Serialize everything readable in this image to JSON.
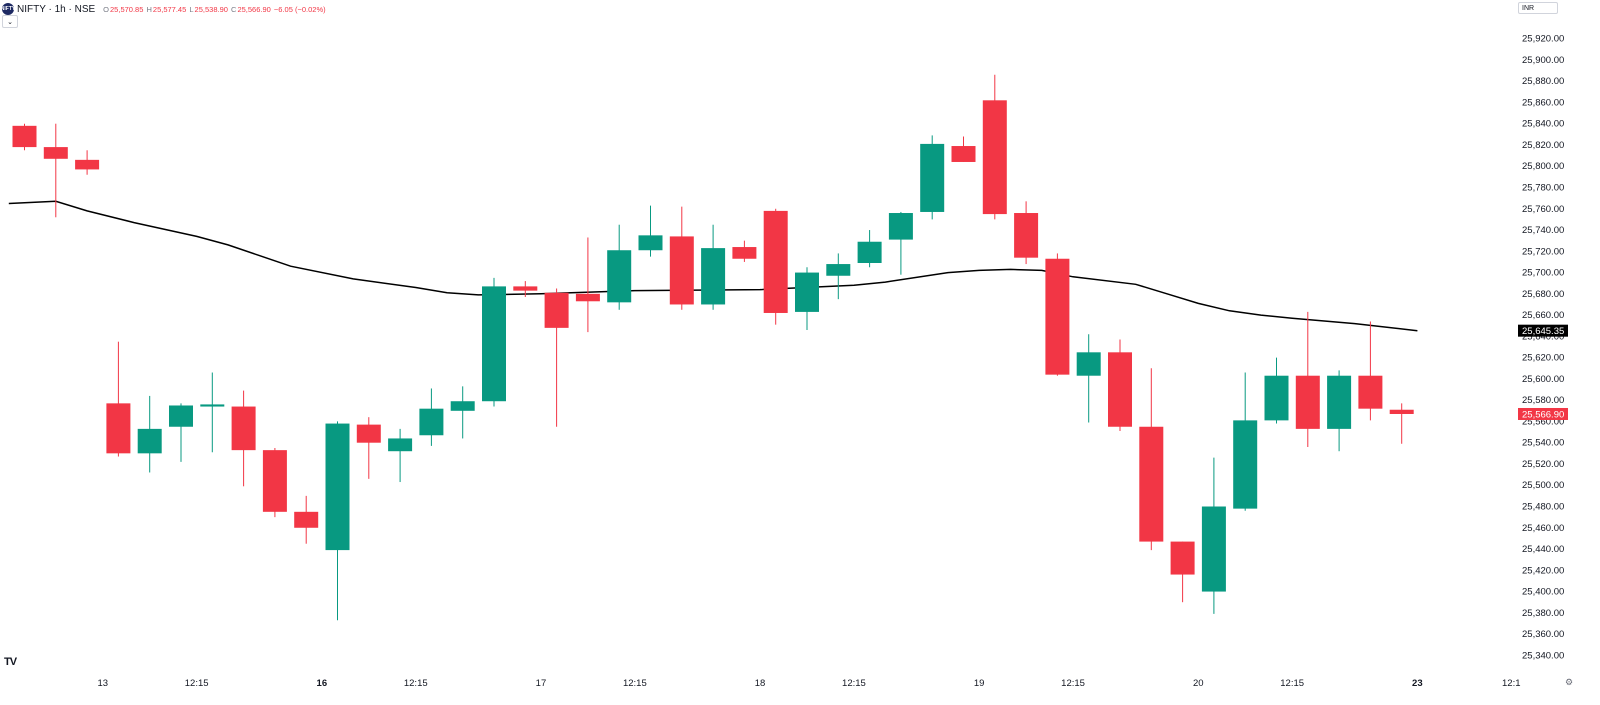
{
  "header": {
    "symbol_icon": "NIFTY",
    "symbol_line": "NIFTY · 1h · NSE",
    "ohlc": {
      "o_label": "O",
      "o": "25,570.85",
      "h_label": "H",
      "h": "25,577.45",
      "l_label": "L",
      "l": "25,538.90",
      "c_label": "C",
      "c": "25,566.90",
      "change": "−6.05 (−0.02%)"
    },
    "collapse_icon": "chevron-down-icon"
  },
  "currency_label": "INR",
  "watermark": "TV",
  "settings_icon": "gear-icon",
  "colors": {
    "up": "#089981",
    "down": "#f23645",
    "ma": "#000000",
    "price_label_bg": "#f23645",
    "ma_label_bg": "#000000"
  },
  "chart_data": {
    "type": "candlestick",
    "interval": "1h",
    "ylim": [
      25330,
      25930
    ],
    "y_ticks": [
      "25,340.00",
      "25,360.00",
      "25,380.00",
      "25,400.00",
      "25,420.00",
      "25,440.00",
      "25,460.00",
      "25,480.00",
      "25,500.00",
      "25,520.00",
      "25,540.00",
      "25,560.00",
      "25,580.00",
      "25,600.00",
      "25,620.00",
      "25,640.00",
      "25,660.00",
      "25,680.00",
      "25,700.00",
      "25,720.00",
      "25,740.00",
      "25,760.00",
      "25,780.00",
      "25,800.00",
      "25,820.00",
      "25,840.00",
      "25,860.00",
      "25,880.00",
      "25,900.00",
      "25,920.00"
    ],
    "x_ticks": [
      {
        "label": "13",
        "bar": 2.5,
        "bold": false
      },
      {
        "label": "12:15",
        "bar": 5.5,
        "bold": false
      },
      {
        "label": "16",
        "bar": 9.5,
        "bold": true
      },
      {
        "label": "12:15",
        "bar": 12.5,
        "bold": false
      },
      {
        "label": "17",
        "bar": 16.5,
        "bold": false
      },
      {
        "label": "12:15",
        "bar": 19.5,
        "bold": false
      },
      {
        "label": "18",
        "bar": 23.5,
        "bold": false
      },
      {
        "label": "12:15",
        "bar": 26.5,
        "bold": false
      },
      {
        "label": "19",
        "bar": 30.5,
        "bold": false
      },
      {
        "label": "12:15",
        "bar": 33.5,
        "bold": false
      },
      {
        "label": "20",
        "bar": 37.5,
        "bold": false
      },
      {
        "label": "12:15",
        "bar": 40.5,
        "bold": false
      },
      {
        "label": "23",
        "bar": 44.5,
        "bold": true
      },
      {
        "label": "12:1",
        "bar": 47.5,
        "bold": false
      }
    ],
    "candles": [
      {
        "o": 25838,
        "h": 25840,
        "l": 25815,
        "c": 25818
      },
      {
        "o": 25818,
        "h": 25840,
        "l": 25752,
        "c": 25807
      },
      {
        "o": 25806,
        "h": 25815,
        "l": 25792,
        "c": 25797
      },
      {
        "o": 25577,
        "h": 25635,
        "l": 25527,
        "c": 25530
      },
      {
        "o": 25530,
        "h": 25584,
        "l": 25512,
        "c": 25553
      },
      {
        "o": 25555,
        "h": 25577,
        "l": 25522,
        "c": 25575
      },
      {
        "o": 25574,
        "h": 25606,
        "l": 25531,
        "c": 25576
      },
      {
        "o": 25574,
        "h": 25589,
        "l": 25499,
        "c": 25533
      },
      {
        "o": 25533,
        "h": 25535,
        "l": 25470,
        "c": 25475
      },
      {
        "o": 25475,
        "h": 25490,
        "l": 25445,
        "c": 25460
      },
      {
        "o": 25439,
        "h": 25560,
        "l": 25373,
        "c": 25558
      },
      {
        "o": 25557,
        "h": 25564,
        "l": 25506,
        "c": 25540
      },
      {
        "o": 25532,
        "h": 25553,
        "l": 25503,
        "c": 25544
      },
      {
        "o": 25547,
        "h": 25591,
        "l": 25537,
        "c": 25572
      },
      {
        "o": 25570,
        "h": 25593,
        "l": 25544,
        "c": 25579
      },
      {
        "o": 25579,
        "h": 25695,
        "l": 25574,
        "c": 25687
      },
      {
        "o": 25687,
        "h": 25692,
        "l": 25677,
        "c": 25683
      },
      {
        "o": 25681,
        "h": 25685,
        "l": 25555,
        "c": 25648
      },
      {
        "o": 25680,
        "h": 25733,
        "l": 25644,
        "c": 25673
      },
      {
        "o": 25672,
        "h": 25745,
        "l": 25665,
        "c": 25721
      },
      {
        "o": 25721,
        "h": 25763,
        "l": 25715,
        "c": 25735
      },
      {
        "o": 25734,
        "h": 25762,
        "l": 25665,
        "c": 25670
      },
      {
        "o": 25670,
        "h": 25745,
        "l": 25665,
        "c": 25723
      },
      {
        "o": 25724,
        "h": 25730,
        "l": 25710,
        "c": 25713
      },
      {
        "o": 25758,
        "h": 25760,
        "l": 25651,
        "c": 25662
      },
      {
        "o": 25663,
        "h": 25705,
        "l": 25646,
        "c": 25700
      },
      {
        "o": 25697,
        "h": 25718,
        "l": 25675,
        "c": 25708
      },
      {
        "o": 25709,
        "h": 25740,
        "l": 25705,
        "c": 25729
      },
      {
        "o": 25731,
        "h": 25757,
        "l": 25698,
        "c": 25756
      },
      {
        "o": 25757,
        "h": 25829,
        "l": 25750,
        "c": 25821
      },
      {
        "o": 25819,
        "h": 25828,
        "l": 25804,
        "c": 25804
      },
      {
        "o": 25862,
        "h": 25886,
        "l": 25750,
        "c": 25755
      },
      {
        "o": 25756,
        "h": 25767,
        "l": 25708,
        "c": 25714
      },
      {
        "o": 25713,
        "h": 25718,
        "l": 25603,
        "c": 25604
      },
      {
        "o": 25603,
        "h": 25642,
        "l": 25559,
        "c": 25625
      },
      {
        "o": 25625,
        "h": 25637,
        "l": 25551,
        "c": 25555
      },
      {
        "o": 25555,
        "h": 25610,
        "l": 25439,
        "c": 25447
      },
      {
        "o": 25447,
        "h": 25447,
        "l": 25390,
        "c": 25416
      },
      {
        "o": 25400,
        "h": 25526,
        "l": 25379,
        "c": 25480
      },
      {
        "o": 25478,
        "h": 25606,
        "l": 25476,
        "c": 25561
      },
      {
        "o": 25561,
        "h": 25620,
        "l": 25558,
        "c": 25603
      },
      {
        "o": 25603,
        "h": 25663,
        "l": 25536,
        "c": 25553
      },
      {
        "o": 25553,
        "h": 25608,
        "l": 25532,
        "c": 25603
      },
      {
        "o": 25603,
        "h": 25654,
        "l": 25561,
        "c": 25572
      },
      {
        "o": 25571,
        "h": 25577,
        "l": 25539,
        "c": 25567
      }
    ],
    "ma": {
      "points": [
        [
          -0.5,
          25765
        ],
        [
          1.0,
          25767
        ],
        [
          2.0,
          25758
        ],
        [
          3.5,
          25747
        ],
        [
          5.5,
          25734
        ],
        [
          6.5,
          25726
        ],
        [
          8.5,
          25706
        ],
        [
          10.5,
          25694
        ],
        [
          12.5,
          25686
        ],
        [
          13.5,
          25681
        ],
        [
          14.5,
          25679
        ],
        [
          16.5,
          25680
        ],
        [
          19.5,
          25683
        ],
        [
          23.5,
          25684
        ],
        [
          26.5,
          25688
        ],
        [
          27.5,
          25691
        ],
        [
          29.5,
          25700
        ],
        [
          30.5,
          25702
        ],
        [
          31.5,
          25703
        ],
        [
          32.5,
          25702
        ],
        [
          33.5,
          25696
        ],
        [
          35.5,
          25689
        ],
        [
          36.5,
          25680
        ],
        [
          37.5,
          25671
        ],
        [
          38.5,
          25664
        ],
        [
          39.5,
          25660
        ],
        [
          40.5,
          25657
        ],
        [
          42.5,
          25652
        ],
        [
          44.5,
          25645.35
        ]
      ],
      "last_label": "25,645.35"
    },
    "last_price_label": "25,566.90"
  }
}
